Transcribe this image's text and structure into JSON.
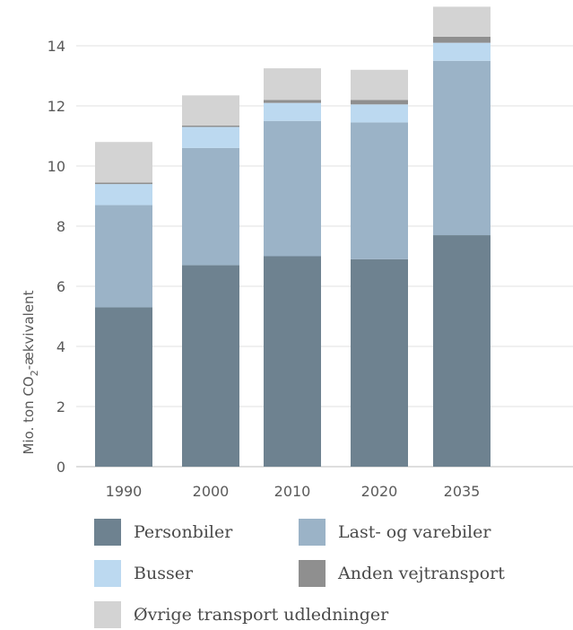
{
  "chart_data": {
    "type": "bar",
    "stacked": true,
    "categories": [
      "1990",
      "2000",
      "2010",
      "2020",
      "2035"
    ],
    "ylabel_main": "Mio. ton CO",
    "ylabel_sub": "2",
    "ylabel_tail": "-ækvivalent",
    "ylim": [
      0,
      15
    ],
    "yticks": [
      "0",
      "2",
      "4",
      "6",
      "8",
      "10",
      "12",
      "14"
    ],
    "grid": true,
    "legend_position": "bottom",
    "series": [
      {
        "name": "Personbiler",
        "color": "#6e8290",
        "values": [
          5.3,
          6.7,
          7.0,
          6.9,
          7.7
        ]
      },
      {
        "name": "Last- og varebiler",
        "color": "#9bb3c7",
        "values": [
          3.4,
          3.9,
          4.5,
          4.55,
          5.8
        ]
      },
      {
        "name": "Busser",
        "color": "#bcd9f0",
        "values": [
          0.7,
          0.7,
          0.6,
          0.6,
          0.6
        ]
      },
      {
        "name": "Anden vejtransport",
        "color": "#8f8f8f",
        "values": [
          0.05,
          0.05,
          0.1,
          0.15,
          0.2
        ]
      },
      {
        "name": "Øvrige transport udledninger",
        "color": "#d3d3d3",
        "values": [
          1.35,
          1.0,
          1.05,
          1.0,
          1.0
        ]
      }
    ]
  }
}
